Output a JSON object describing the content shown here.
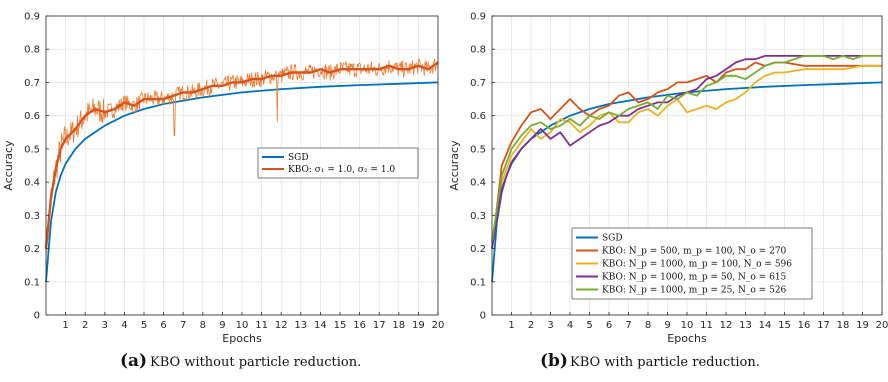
{
  "colors": {
    "sgd": "#0072BD",
    "kbo": "#D95319",
    "kbo_raw": "#EE7A30",
    "s2": "#EDB120",
    "s3": "#7E2F8E",
    "s4": "#77AC30",
    "grid": "#e3e3e3",
    "axis": "#262626"
  },
  "chart_data": [
    {
      "type": "line",
      "xlabel": "Epochs",
      "ylabel": "Accuracy",
      "xlim": [
        0,
        20
      ],
      "ylim": [
        0,
        0.9
      ],
      "xticks": [
        "1",
        "2",
        "3",
        "4",
        "5",
        "6",
        "7",
        "8",
        "9",
        "10",
        "11",
        "12",
        "13",
        "14",
        "15",
        "16",
        "17",
        "18",
        "19",
        "20"
      ],
      "yticks": [
        "0",
        "0.1",
        "0.2",
        "0.3",
        "0.4",
        "0.5",
        "0.6",
        "0.7",
        "0.8",
        "0.9"
      ],
      "grid": true,
      "legend_position": "center-right",
      "caption_label": "(a)",
      "caption": "KBO without particle reduction.",
      "series": [
        {
          "name": "SGD",
          "x": [
            0,
            0.25,
            0.5,
            0.75,
            1,
            1.5,
            2,
            3,
            4,
            5,
            6,
            8,
            10,
            12,
            14,
            16,
            18,
            20
          ],
          "y": [
            0.1,
            0.28,
            0.37,
            0.42,
            0.455,
            0.5,
            0.53,
            0.57,
            0.6,
            0.62,
            0.635,
            0.655,
            0.67,
            0.68,
            0.687,
            0.692,
            0.696,
            0.7
          ]
        },
        {
          "name": "KBO: σ₁ = 1.0, σ₂ = 1.0",
          "x": [
            0,
            0.25,
            0.5,
            0.75,
            1,
            1.5,
            2,
            2.5,
            3,
            3.5,
            4,
            4.5,
            5,
            5.5,
            6,
            6.5,
            7,
            7.5,
            8,
            8.5,
            9,
            9.5,
            10,
            10.5,
            11,
            11.5,
            12,
            12.5,
            13,
            13.5,
            14,
            14.5,
            15,
            15.5,
            16,
            16.5,
            17,
            17.5,
            18,
            18.5,
            19,
            19.5,
            20
          ],
          "y": [
            0.2,
            0.35,
            0.44,
            0.5,
            0.53,
            0.56,
            0.6,
            0.62,
            0.61,
            0.62,
            0.64,
            0.63,
            0.65,
            0.65,
            0.65,
            0.66,
            0.67,
            0.67,
            0.68,
            0.69,
            0.69,
            0.7,
            0.7,
            0.71,
            0.71,
            0.72,
            0.72,
            0.73,
            0.73,
            0.73,
            0.74,
            0.73,
            0.74,
            0.74,
            0.74,
            0.74,
            0.74,
            0.75,
            0.74,
            0.74,
            0.75,
            0.74,
            0.76
          ]
        }
      ]
    },
    {
      "type": "line",
      "xlabel": "Epochs",
      "ylabel": "Accuracy",
      "xlim": [
        0,
        20
      ],
      "ylim": [
        0,
        0.9
      ],
      "xticks": [
        "1",
        "2",
        "3",
        "4",
        "5",
        "6",
        "7",
        "8",
        "9",
        "10",
        "11",
        "12",
        "13",
        "14",
        "15",
        "16",
        "17",
        "18",
        "19",
        "20"
      ],
      "yticks": [
        "0",
        "0.1",
        "0.2",
        "0.3",
        "0.4",
        "0.5",
        "0.6",
        "0.7",
        "0.8",
        "0.9"
      ],
      "grid": true,
      "legend_position": "bottom-right",
      "caption_label": "(b)",
      "caption": "KBO with particle reduction.",
      "series": [
        {
          "name": "SGD",
          "x": [
            0,
            0.25,
            0.5,
            0.75,
            1,
            1.5,
            2,
            3,
            4,
            5,
            6,
            8,
            10,
            12,
            14,
            16,
            18,
            20
          ],
          "y": [
            0.1,
            0.28,
            0.37,
            0.42,
            0.455,
            0.5,
            0.53,
            0.57,
            0.6,
            0.62,
            0.635,
            0.655,
            0.67,
            0.68,
            0.687,
            0.692,
            0.696,
            0.7
          ]
        },
        {
          "name": "KBO: N_p = 500, m_p = 100, N_o = 270",
          "x": [
            0,
            0.5,
            1,
            1.5,
            2,
            2.5,
            3,
            3.5,
            4,
            4.5,
            5,
            5.5,
            6,
            6.5,
            7,
            7.5,
            8,
            8.5,
            9,
            9.5,
            10,
            10.5,
            11,
            11.5,
            12,
            12.5,
            13,
            13.5,
            14,
            14.5,
            15,
            16,
            17,
            18,
            19,
            20
          ],
          "y": [
            0.2,
            0.45,
            0.52,
            0.57,
            0.61,
            0.62,
            0.59,
            0.62,
            0.65,
            0.62,
            0.6,
            0.62,
            0.63,
            0.66,
            0.67,
            0.64,
            0.65,
            0.67,
            0.68,
            0.7,
            0.7,
            0.71,
            0.72,
            0.7,
            0.73,
            0.74,
            0.74,
            0.76,
            0.75,
            0.76,
            0.76,
            0.75,
            0.75,
            0.75,
            0.75,
            0.75
          ]
        },
        {
          "name": "KBO: N_p = 1000, m_p = 100, N_o = 596",
          "x": [
            0,
            0.5,
            1,
            1.5,
            2,
            2.5,
            3,
            3.5,
            4,
            4.5,
            5,
            5.5,
            6,
            6.5,
            7,
            7.5,
            8,
            8.5,
            9,
            9.5,
            10,
            10.5,
            11,
            11.5,
            12,
            12.5,
            13,
            13.5,
            14,
            14.5,
            15,
            16,
            17,
            18,
            19,
            20
          ],
          "y": [
            0.2,
            0.4,
            0.48,
            0.52,
            0.56,
            0.53,
            0.55,
            0.59,
            0.58,
            0.55,
            0.57,
            0.6,
            0.61,
            0.58,
            0.58,
            0.61,
            0.62,
            0.6,
            0.63,
            0.65,
            0.61,
            0.62,
            0.63,
            0.62,
            0.64,
            0.65,
            0.67,
            0.7,
            0.72,
            0.73,
            0.73,
            0.74,
            0.74,
            0.74,
            0.75,
            0.75
          ]
        },
        {
          "name": "KBO: N_p = 1000, m_p = 50, N_o = 615",
          "x": [
            0,
            0.5,
            1,
            1.5,
            2,
            2.5,
            3,
            3.5,
            4,
            4.5,
            5,
            5.5,
            6,
            6.5,
            7,
            7.5,
            8,
            8.5,
            9,
            9.5,
            10,
            10.5,
            11,
            11.5,
            12,
            12.5,
            13,
            13.5,
            14,
            14.5,
            15,
            16,
            17,
            18,
            19
          ],
          "y": [
            0.2,
            0.38,
            0.46,
            0.5,
            0.53,
            0.56,
            0.53,
            0.55,
            0.51,
            0.53,
            0.55,
            0.57,
            0.58,
            0.6,
            0.6,
            0.62,
            0.63,
            0.64,
            0.64,
            0.66,
            0.67,
            0.68,
            0.71,
            0.72,
            0.74,
            0.76,
            0.77,
            0.77,
            0.78,
            0.78,
            0.78,
            0.78,
            0.78,
            0.78,
            0.78
          ]
        },
        {
          "name": "KBO: N_p = 1000, m_p = 25, N_o = 526",
          "x": [
            0,
            0.5,
            1,
            1.5,
            2,
            2.5,
            3,
            3.5,
            4,
            4.5,
            5,
            5.5,
            6,
            6.5,
            7,
            7.5,
            8,
            8.5,
            9,
            9.5,
            10,
            10.5,
            11,
            11.5,
            12,
            12.5,
            13,
            13.5,
            14,
            14.5,
            15,
            15.5,
            16,
            16.5,
            17,
            17.5,
            18,
            18.5,
            19,
            20
          ],
          "y": [
            0.22,
            0.42,
            0.5,
            0.54,
            0.57,
            0.58,
            0.56,
            0.57,
            0.59,
            0.57,
            0.6,
            0.59,
            0.61,
            0.6,
            0.62,
            0.63,
            0.64,
            0.62,
            0.66,
            0.65,
            0.67,
            0.66,
            0.69,
            0.7,
            0.72,
            0.72,
            0.71,
            0.73,
            0.75,
            0.76,
            0.76,
            0.77,
            0.78,
            0.78,
            0.78,
            0.77,
            0.78,
            0.77,
            0.78,
            0.78
          ]
        }
      ]
    }
  ]
}
